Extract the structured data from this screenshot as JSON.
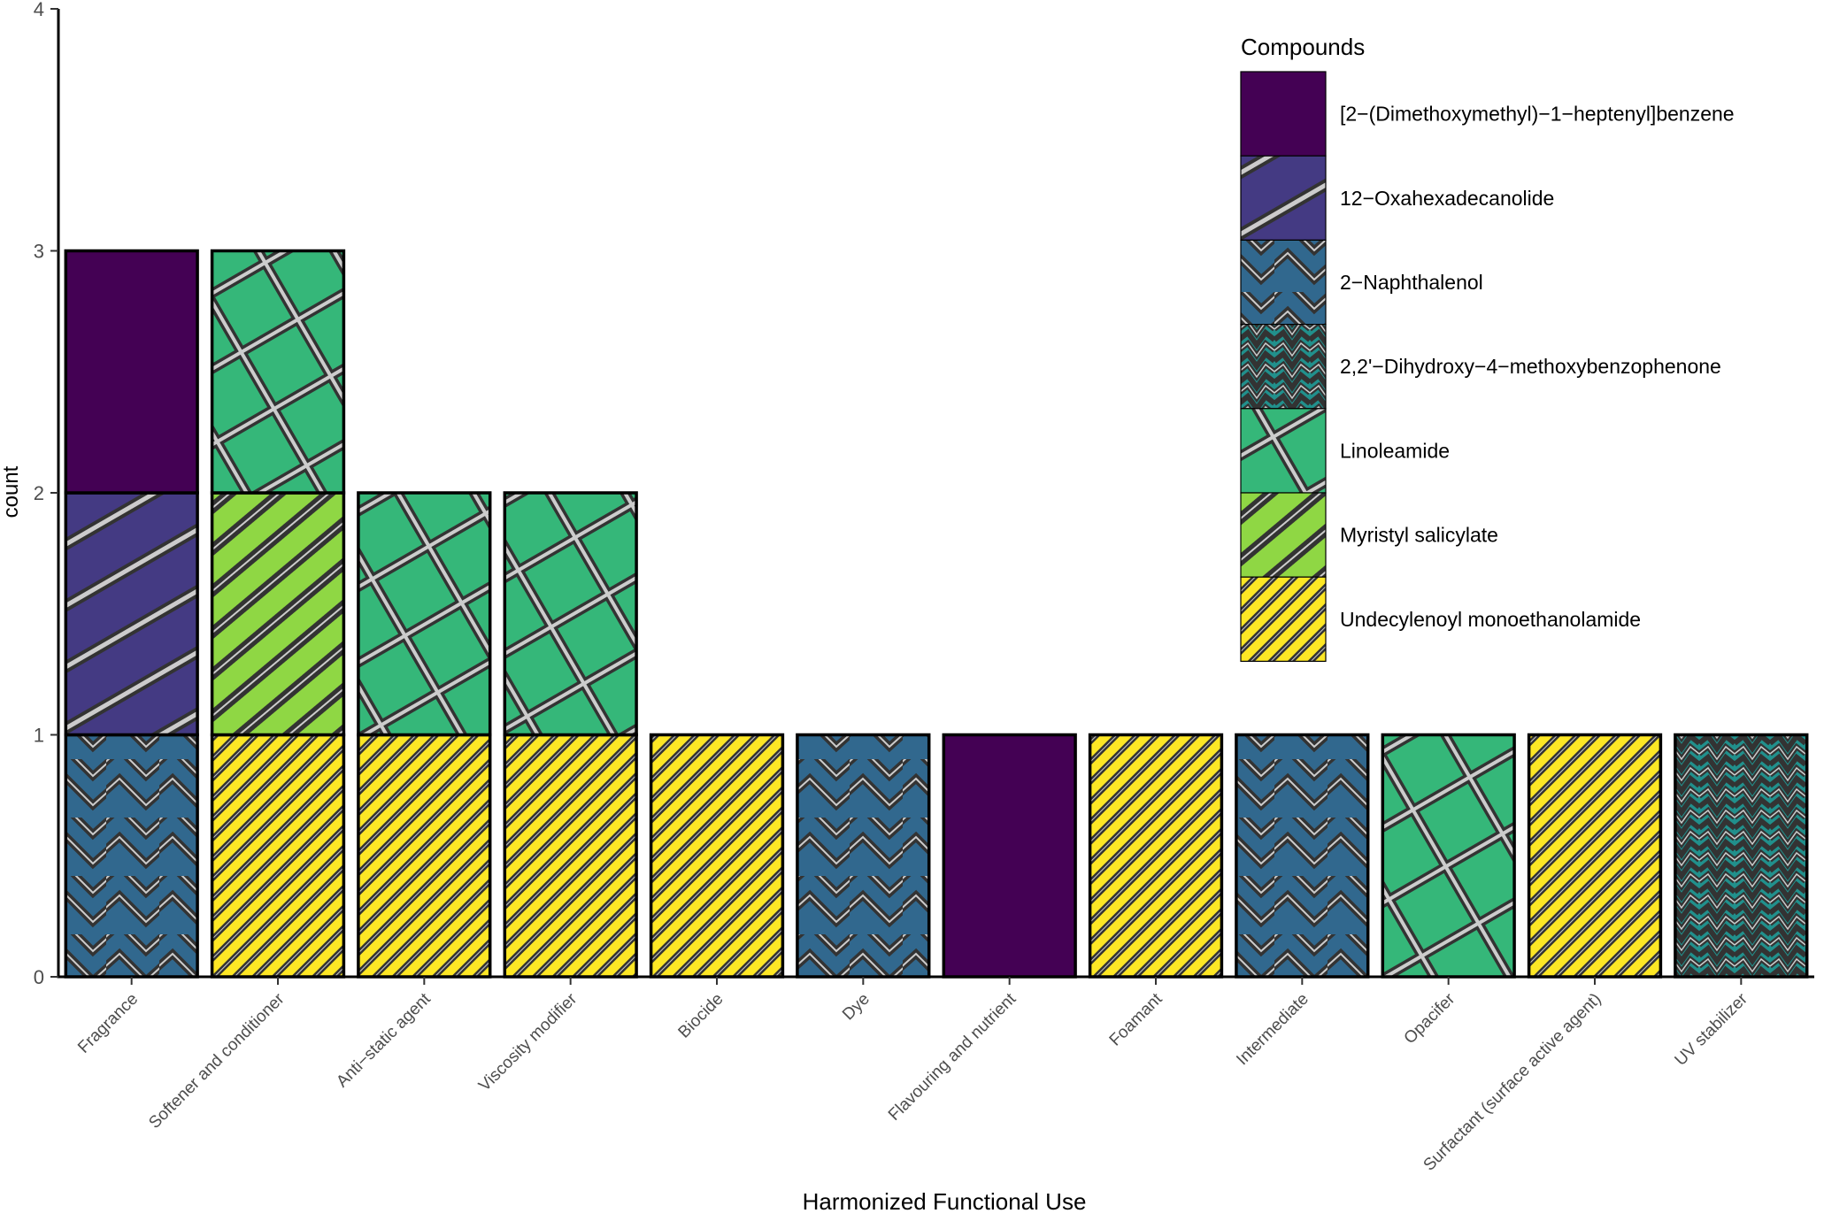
{
  "chart_data": {
    "type": "bar",
    "stacked": true,
    "title": "",
    "xlabel": "Harmonized Functional Use",
    "ylabel": "count",
    "ylim": [
      0,
      4
    ],
    "yticks": [
      "0",
      "1",
      "2",
      "3",
      "4"
    ],
    "categories": [
      "Fragrance",
      "Softener and conditioner",
      "Anti−static agent",
      "Viscosity modifier",
      "Biocide",
      "Dye",
      "Flavouring and nutrient",
      "Foamant",
      "Intermediate",
      "Opacifer",
      "Surfactant (surface active agent)",
      "UV stabilizer"
    ],
    "legend_title": "Compounds",
    "legend_position": "top-right",
    "series": [
      {
        "name": "[2−(Dimethoxymethyl)−1−heptenyl]benzene",
        "color": "#440154",
        "pattern": "solid",
        "values": [
          1,
          0,
          0,
          0,
          0,
          0,
          1,
          0,
          0,
          0,
          0,
          0
        ]
      },
      {
        "name": "12−Oxahexadecanolide",
        "color": "#443A83",
        "pattern": "stripe-wide",
        "values": [
          1,
          0,
          0,
          0,
          0,
          0,
          0,
          0,
          0,
          0,
          0,
          0
        ]
      },
      {
        "name": "2−Naphthalenol",
        "color": "#31688E",
        "pattern": "zigzag",
        "values": [
          1,
          0,
          0,
          0,
          0,
          1,
          0,
          0,
          1,
          0,
          0,
          0
        ]
      },
      {
        "name": "2,2'−Dihydroxy−4−methoxybenzophenone",
        "color": "#21908C",
        "pattern": "wave",
        "values": [
          0,
          0,
          0,
          0,
          0,
          0,
          0,
          0,
          0,
          0,
          0,
          1
        ]
      },
      {
        "name": "Linoleamide",
        "color": "#35B779",
        "pattern": "crosshatch",
        "values": [
          0,
          1,
          1,
          1,
          0,
          0,
          0,
          0,
          0,
          1,
          0,
          0
        ]
      },
      {
        "name": "Myristyl salicylate",
        "color": "#8FD744",
        "pattern": "stripe",
        "values": [
          0,
          1,
          0,
          0,
          0,
          0,
          0,
          0,
          0,
          0,
          0,
          0
        ]
      },
      {
        "name": "Undecylenoyl monoethanolamide",
        "color": "#FDE725",
        "pattern": "stripe-fine",
        "values": [
          0,
          1,
          1,
          1,
          1,
          0,
          0,
          1,
          0,
          0,
          1,
          0
        ]
      }
    ],
    "stack_order": [
      6,
      5,
      4,
      3,
      2,
      1,
      0
    ]
  }
}
